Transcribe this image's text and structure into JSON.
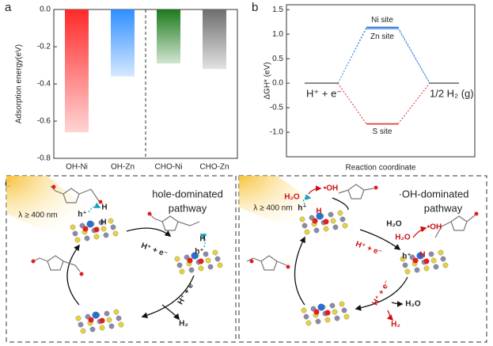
{
  "panels": [
    "a",
    "b",
    "c"
  ],
  "chart_data": [
    {
      "type": "bar",
      "y_label": "Adsorption energy(eV)",
      "categories": [
        "OH-Ni",
        "OH-Zn",
        "CHO-Ni",
        "CHO-Zn"
      ],
      "values": [
        -0.66,
        -0.36,
        -0.29,
        -0.32
      ],
      "colors": [
        "#ff2a2a",
        "#2f8fff",
        "#1d7a1d",
        "#6e6e6e"
      ],
      "ylim": [
        -0.8,
        0
      ],
      "yticks": [
        -0.8,
        -0.6,
        -0.4,
        -0.2,
        {
          "value": 0,
          "label": "0.0"
        }
      ]
    },
    {
      "type": "energy",
      "x_label": "Reaction coordinate",
      "y_label": "ΔGH* (eV)",
      "categories": [
        "H⁺ + e⁻",
        null,
        "1/2 H₂ (g)"
      ],
      "series": [
        {
          "name": "Ni site",
          "color": "#2f6fd6",
          "values": [
            0,
            1.14,
            0
          ]
        },
        {
          "name": "Zn site",
          "color": "#6aa6ea",
          "values": [
            0,
            1.11,
            0
          ]
        },
        {
          "name": "S site",
          "color": "#e02626",
          "values": [
            0,
            -0.83,
            0
          ]
        }
      ],
      "ylim": [
        -1.5,
        1.6
      ],
      "yticks": [
        {
          "value": -1,
          "label": "-1.0"
        },
        -0.5,
        {
          "value": 0,
          "label": "0.0"
        },
        0.5,
        {
          "value": 1,
          "label": "1.0"
        },
        1.5
      ]
    }
  ],
  "diagram": {
    "left": {
      "title": [
        "hole-dominated",
        "pathway"
      ],
      "light": "λ ≥ 400 nm",
      "labels": [
        "h⁺",
        "H",
        "H",
        "h⁺",
        "H",
        "H⁺ + e⁻",
        "H⁺ + e⁻",
        "H₂"
      ]
    },
    "right": {
      "title": [
        "·OH-dominated",
        "pathway"
      ],
      "light": "λ ≥ 400 nm",
      "labels": [
        "H₂O",
        "•OH",
        "h⁺",
        "H",
        "H₂O",
        "H⁺ + e⁻",
        "H₂O",
        "•OH",
        "h⁺",
        "H",
        "H⁺ + e⁻",
        "H₂O",
        "H₂"
      ]
    }
  }
}
